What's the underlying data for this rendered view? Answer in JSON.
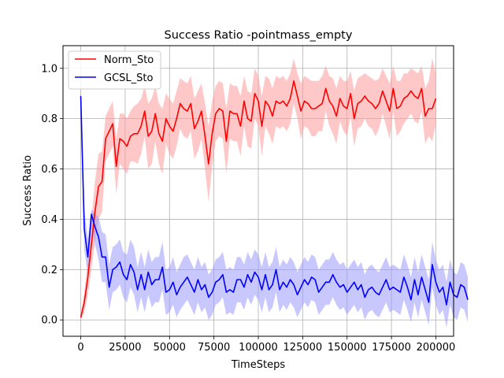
{
  "chart_data": {
    "type": "line",
    "title": "Success Ratio -pointmass_empty",
    "xlabel": "TimeSteps",
    "ylabel": "Success Ratio",
    "xlim": [
      -10000,
      210000
    ],
    "ylim": [
      -0.065,
      1.09
    ],
    "xticks": [
      0,
      25000,
      50000,
      75000,
      100000,
      125000,
      150000,
      175000,
      200000
    ],
    "yticks": [
      0.0,
      0.2,
      0.4,
      0.6,
      0.8,
      1.0
    ],
    "xtick_labels": [
      "0",
      "25000",
      "50000",
      "75000",
      "100000",
      "125000",
      "150000",
      "175000",
      "200000"
    ],
    "ytick_labels": [
      "0.0",
      "0.2",
      "0.4",
      "0.6",
      "0.8",
      "1.0"
    ],
    "grid": true,
    "legend_position": "upper-left",
    "x_step": 2000,
    "series": [
      {
        "name": "Norm_Sto",
        "color": "#ff0000",
        "band_color": "#ff9a9a",
        "mean": [
          0.01,
          0.07,
          0.17,
          0.3,
          0.43,
          0.53,
          0.55,
          0.72,
          0.75,
          0.78,
          0.61,
          0.72,
          0.71,
          0.69,
          0.73,
          0.74,
          0.74,
          0.77,
          0.83,
          0.73,
          0.75,
          0.82,
          0.74,
          0.71,
          0.8,
          0.77,
          0.75,
          0.8,
          0.86,
          0.84,
          0.83,
          0.86,
          0.76,
          0.79,
          0.83,
          0.73,
          0.62,
          0.74,
          0.82,
          0.84,
          0.83,
          0.71,
          0.83,
          0.82,
          0.82,
          0.77,
          0.87,
          0.8,
          0.79,
          0.9,
          0.87,
          0.77,
          0.87,
          0.85,
          0.81,
          0.87,
          0.86,
          0.87,
          0.85,
          0.88,
          0.95,
          0.89,
          0.83,
          0.87,
          0.86,
          0.84,
          0.84,
          0.85,
          0.86,
          0.92,
          0.87,
          0.85,
          0.81,
          0.88,
          0.85,
          0.84,
          0.9,
          0.8,
          0.86,
          0.87,
          0.89,
          0.87,
          0.86,
          0.84,
          0.86,
          0.91,
          0.87,
          0.83,
          0.92,
          0.84,
          0.85,
          0.88,
          0.89,
          0.91,
          0.89,
          0.88,
          0.92,
          0.81,
          0.84,
          0.84,
          0.88
        ],
        "upper": [
          0.02,
          0.11,
          0.24,
          0.4,
          0.55,
          0.66,
          0.67,
          0.81,
          0.84,
          0.87,
          0.72,
          0.82,
          0.82,
          0.8,
          0.83,
          0.85,
          0.86,
          0.88,
          0.93,
          0.86,
          0.88,
          0.93,
          0.86,
          0.84,
          0.9,
          0.88,
          0.86,
          0.91,
          0.96,
          0.95,
          0.94,
          0.97,
          0.88,
          0.91,
          0.94,
          0.86,
          0.77,
          0.87,
          0.93,
          0.95,
          0.94,
          0.84,
          0.94,
          0.93,
          0.93,
          0.89,
          0.97,
          0.91,
          0.9,
          1.0,
          0.97,
          0.89,
          0.97,
          0.96,
          0.92,
          0.97,
          0.96,
          0.97,
          0.95,
          0.98,
          1.04,
          0.98,
          0.94,
          0.97,
          0.96,
          0.95,
          0.95,
          0.95,
          0.97,
          1.01,
          0.97,
          0.96,
          0.92,
          0.97,
          0.95,
          0.95,
          0.99,
          0.91,
          0.96,
          0.97,
          0.98,
          0.97,
          0.96,
          0.95,
          0.96,
          1.0,
          0.97,
          0.94,
          1.01,
          0.95,
          0.95,
          0.98,
          0.98,
          1.0,
          0.99,
          0.98,
          1.01,
          0.92,
          0.95,
          1.04,
          0.98
        ],
        "lower": [
          0.0,
          0.03,
          0.1,
          0.2,
          0.31,
          0.4,
          0.43,
          0.63,
          0.66,
          0.69,
          0.5,
          0.62,
          0.6,
          0.58,
          0.63,
          0.63,
          0.62,
          0.66,
          0.73,
          0.6,
          0.62,
          0.71,
          0.62,
          0.58,
          0.7,
          0.66,
          0.64,
          0.69,
          0.76,
          0.73,
          0.72,
          0.75,
          0.64,
          0.67,
          0.72,
          0.6,
          0.47,
          0.61,
          0.71,
          0.73,
          0.72,
          0.58,
          0.72,
          0.71,
          0.71,
          0.65,
          0.77,
          0.69,
          0.68,
          0.8,
          0.77,
          0.65,
          0.77,
          0.74,
          0.7,
          0.77,
          0.76,
          0.77,
          0.75,
          0.78,
          0.86,
          0.8,
          0.72,
          0.77,
          0.76,
          0.73,
          0.73,
          0.75,
          0.75,
          0.83,
          0.77,
          0.74,
          0.7,
          0.79,
          0.75,
          0.73,
          0.81,
          0.69,
          0.76,
          0.77,
          0.8,
          0.77,
          0.76,
          0.73,
          0.76,
          0.82,
          0.77,
          0.72,
          0.83,
          0.73,
          0.75,
          0.78,
          0.8,
          0.82,
          0.79,
          0.78,
          0.83,
          0.7,
          0.73,
          0.71,
          0.78
        ]
      },
      {
        "name": "GCSL_Sto",
        "color": "#0000ff",
        "band_color": "#9a9aff",
        "mean": [
          0.89,
          0.36,
          0.25,
          0.42,
          0.37,
          0.33,
          0.25,
          0.25,
          0.13,
          0.2,
          0.21,
          0.23,
          0.18,
          0.16,
          0.22,
          0.19,
          0.12,
          0.18,
          0.12,
          0.19,
          0.14,
          0.16,
          0.16,
          0.21,
          0.11,
          0.12,
          0.15,
          0.1,
          0.13,
          0.15,
          0.17,
          0.14,
          0.11,
          0.16,
          0.12,
          0.14,
          0.09,
          0.11,
          0.15,
          0.16,
          0.18,
          0.11,
          0.12,
          0.11,
          0.16,
          0.16,
          0.13,
          0.18,
          0.15,
          0.19,
          0.17,
          0.12,
          0.18,
          0.12,
          0.14,
          0.2,
          0.12,
          0.15,
          0.13,
          0.16,
          0.14,
          0.1,
          0.13,
          0.16,
          0.14,
          0.17,
          0.16,
          0.11,
          0.13,
          0.15,
          0.15,
          0.18,
          0.15,
          0.13,
          0.14,
          0.11,
          0.13,
          0.15,
          0.12,
          0.14,
          0.09,
          0.12,
          0.13,
          0.11,
          0.1,
          0.13,
          0.16,
          0.12,
          0.13,
          0.12,
          0.11,
          0.17,
          0.13,
          0.08,
          0.16,
          0.1,
          0.17,
          0.12,
          0.07,
          0.22,
          0.15,
          0.11,
          0.13,
          0.06,
          0.15,
          0.1,
          0.09,
          0.14,
          0.13,
          0.08
        ],
        "upper": [
          0.9,
          0.44,
          0.32,
          0.44,
          0.42,
          0.41,
          0.35,
          0.34,
          0.22,
          0.29,
          0.3,
          0.32,
          0.27,
          0.26,
          0.32,
          0.29,
          0.21,
          0.27,
          0.21,
          0.28,
          0.23,
          0.25,
          0.25,
          0.31,
          0.2,
          0.21,
          0.25,
          0.19,
          0.22,
          0.25,
          0.26,
          0.23,
          0.2,
          0.25,
          0.21,
          0.23,
          0.18,
          0.2,
          0.24,
          0.25,
          0.27,
          0.2,
          0.21,
          0.2,
          0.25,
          0.25,
          0.22,
          0.27,
          0.24,
          0.28,
          0.26,
          0.21,
          0.27,
          0.21,
          0.23,
          0.29,
          0.21,
          0.24,
          0.22,
          0.25,
          0.23,
          0.19,
          0.22,
          0.25,
          0.23,
          0.26,
          0.25,
          0.2,
          0.22,
          0.24,
          0.24,
          0.27,
          0.24,
          0.22,
          0.23,
          0.2,
          0.22,
          0.24,
          0.21,
          0.23,
          0.18,
          0.21,
          0.22,
          0.2,
          0.19,
          0.22,
          0.25,
          0.21,
          0.22,
          0.21,
          0.2,
          0.26,
          0.22,
          0.17,
          0.25,
          0.19,
          0.26,
          0.21,
          0.16,
          0.31,
          0.24,
          0.2,
          0.22,
          0.15,
          0.24,
          0.19,
          0.18,
          0.23,
          0.22,
          0.17
        ],
        "lower": [
          0.88,
          0.28,
          0.18,
          0.37,
          0.3,
          0.24,
          0.15,
          0.15,
          0.04,
          0.11,
          0.12,
          0.14,
          0.09,
          0.07,
          0.13,
          0.1,
          0.03,
          0.09,
          0.03,
          0.1,
          0.05,
          0.07,
          0.07,
          0.12,
          0.02,
          0.03,
          0.06,
          0.01,
          0.04,
          0.06,
          0.08,
          0.05,
          0.02,
          0.07,
          0.03,
          0.05,
          0.0,
          0.02,
          0.06,
          0.07,
          0.09,
          0.02,
          0.03,
          0.02,
          0.07,
          0.07,
          0.04,
          0.09,
          0.06,
          0.1,
          0.08,
          0.03,
          0.09,
          0.03,
          0.05,
          0.11,
          0.03,
          0.06,
          0.04,
          0.07,
          0.05,
          0.01,
          0.04,
          0.07,
          0.05,
          0.08,
          0.07,
          0.02,
          0.04,
          0.06,
          0.06,
          0.09,
          0.06,
          0.04,
          0.05,
          0.02,
          0.04,
          0.06,
          0.03,
          0.05,
          0.0,
          0.03,
          0.04,
          0.02,
          0.01,
          0.04,
          0.07,
          0.03,
          0.04,
          0.03,
          0.02,
          0.08,
          0.04,
          -0.01,
          0.07,
          0.01,
          0.08,
          0.03,
          -0.02,
          0.13,
          0.06,
          0.02,
          0.04,
          -0.03,
          0.06,
          0.01,
          0.0,
          0.05,
          0.04,
          -0.01
        ]
      }
    ]
  }
}
